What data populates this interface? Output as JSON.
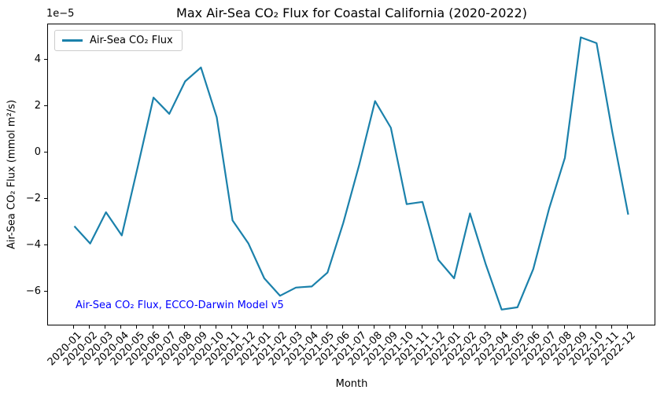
{
  "chart_data": {
    "type": "line",
    "title": "Max Air-Sea CO₂ Flux for Coastal California (2020-2022)",
    "xlabel": "Month",
    "ylabel": "Air-Sea CO₂ Flux (mmol m²/s)",
    "y_offset_text": "1e−5",
    "y_unit_scale": "1e-5",
    "grid": false,
    "legend": {
      "position": "upper left",
      "entries": [
        "Air-Sea CO₂ Flux"
      ]
    },
    "annotation": {
      "text": "Air-Sea CO₂ Flux, ECCO-Darwin Model v5",
      "color": "#0000ff"
    },
    "categories": [
      "2020-01",
      "2020-02",
      "2020-03",
      "2020-04",
      "2020-05",
      "2020-06",
      "2020-07",
      "2020-08",
      "2020-09",
      "2020-10",
      "2020-11",
      "2020-12",
      "2021-01",
      "2021-02",
      "2021-03",
      "2021-04",
      "2021-05",
      "2021-06",
      "2021-07",
      "2021-08",
      "2021-09",
      "2021-10",
      "2021-11",
      "2021-12",
      "2022-01",
      "2022-02",
      "2022-03",
      "2022-04",
      "2022-05",
      "2022-06",
      "2022-07",
      "2022-08",
      "2022-09",
      "2022-10",
      "2022-11",
      "2022-12"
    ],
    "series": [
      {
        "name": "Air-Sea CO₂ Flux",
        "color": "#1b81ab",
        "values_1e-5": [
          -3.15,
          -3.9,
          -2.55,
          -3.55,
          -0.6,
          2.4,
          1.7,
          3.1,
          3.7,
          1.55,
          -2.9,
          -3.9,
          -5.4,
          -6.15,
          -5.8,
          -5.75,
          -5.15,
          -3.0,
          -0.5,
          2.25,
          1.1,
          -2.2,
          -2.1,
          -4.6,
          -5.4,
          -2.6,
          -4.8,
          -6.75,
          -6.65,
          -5.0,
          -2.4,
          -0.2,
          5.0,
          4.75,
          0.9,
          -2.65
        ]
      }
    ],
    "yticks": [
      4,
      2,
      0,
      -2,
      -4,
      -6
    ],
    "ylim": [
      -7.4,
      5.56
    ]
  }
}
